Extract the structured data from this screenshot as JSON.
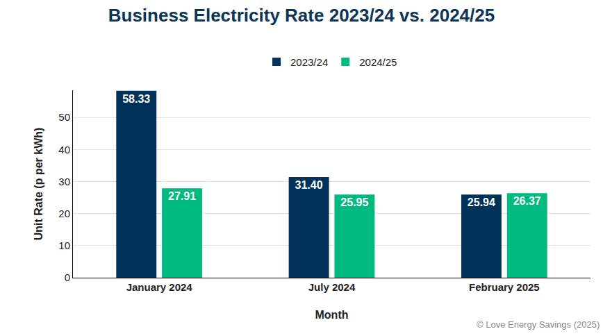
{
  "chart_data": {
    "type": "bar",
    "title": "Business Electricity Rate 2023/24 vs. 2024/25",
    "x_label": "Month",
    "y_label": "Unit Rate (p per kWh)",
    "categories": [
      "January 2024",
      "July 2024",
      "February 2025"
    ],
    "series": [
      {
        "name": "2023/24",
        "color": "#00325a",
        "values": [
          58.33,
          31.4,
          25.94
        ],
        "value_labels": [
          "58.33",
          "31.40",
          "25.94"
        ]
      },
      {
        "name": "2024/25",
        "color": "#00ba7f",
        "values": [
          27.91,
          25.95,
          26.37
        ],
        "value_labels": [
          "27.91",
          "25.95",
          "26.37"
        ]
      }
    ],
    "ylim": [
      0,
      58.5
    ],
    "yticks": [
      0,
      10,
      20,
      30,
      40,
      50
    ],
    "grid": true,
    "legend": "top",
    "data_labels": true,
    "annotations": [
      "© Love Energy Savings (2025)"
    ]
  }
}
